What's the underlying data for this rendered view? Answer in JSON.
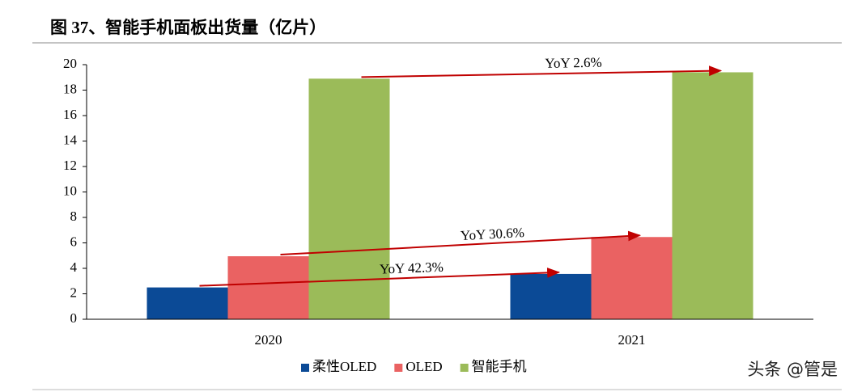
{
  "chart_data": {
    "type": "bar",
    "title": "图 37、智能手机面板出货量（亿片）",
    "categories": [
      "2020",
      "2021"
    ],
    "series": [
      {
        "name": "柔性OLED",
        "color": "#0b4a96",
        "values": [
          2.5,
          3.56
        ]
      },
      {
        "name": "OLED",
        "color": "#ea6262",
        "values": [
          4.95,
          6.46
        ]
      },
      {
        "name": "智能手机",
        "color": "#9bbb59",
        "values": [
          18.9,
          19.4
        ]
      }
    ],
    "annotations": [
      "YoY 42.3%",
      "YoY 30.6%",
      "YoY 2.6%"
    ],
    "annotation_color": "#c00000",
    "ylim": [
      0,
      20
    ],
    "yticks": [
      0,
      2,
      4,
      6,
      8,
      10,
      12,
      14,
      16,
      18,
      20
    ],
    "watermark": "头条 @管是"
  }
}
